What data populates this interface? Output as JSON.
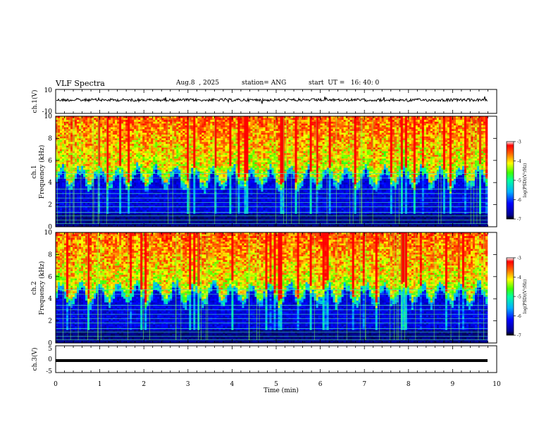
{
  "header": {
    "title": "VLF Spectra",
    "date": "Aug.8  , 2025",
    "station": "station= ANG",
    "start": "start  UT =   16: 40: 0"
  },
  "chart_data": [
    {
      "type": "line",
      "id": "ch1-waveform",
      "ylabel": "ch.1(V)",
      "ylim": [
        -10,
        10
      ],
      "yticks": [
        "10",
        "-10"
      ],
      "xlim": [
        0,
        10
      ],
      "trace": "noisy waveform near 0 V spanning 0 to 9.8 min"
    },
    {
      "type": "heatmap",
      "id": "ch1-spectrogram",
      "ylabel": "ch.1\nFrequency (kHz)",
      "ylim": [
        0,
        10
      ],
      "yticks": [
        "0",
        "2",
        "4",
        "6",
        "8",
        "10"
      ],
      "xlim": [
        0,
        10
      ],
      "colorbar": {
        "label": "log(PSD)(V²/Hz)",
        "range": [
          -7,
          -3
        ],
        "ticks": [
          "-3",
          "-4",
          "-5",
          "-6",
          "-7"
        ]
      }
    },
    {
      "type": "heatmap",
      "id": "ch2-spectrogram",
      "ylabel": "ch.2\nFrequency (kHz)",
      "ylim": [
        0,
        10
      ],
      "yticks": [
        "0",
        "2",
        "4",
        "6",
        "8",
        "10"
      ],
      "xlim": [
        0,
        10
      ],
      "colorbar": {
        "label": "log(PSD)(V²/Hz)",
        "range": [
          -7,
          -3
        ],
        "ticks": [
          "-3",
          "-4",
          "-5",
          "-6",
          "-7"
        ]
      }
    },
    {
      "type": "line",
      "id": "ch3-waveform",
      "ylabel": "ch.3(V)",
      "ylim": [
        -5,
        5
      ],
      "yticks": [
        "5",
        "0",
        "-5"
      ],
      "xlim": [
        0,
        10
      ],
      "trace": "flat line at about -1 V spanning 0 to 9.8 min"
    }
  ],
  "xaxis": {
    "label": "Time  (min)",
    "ticks": [
      "0",
      "1",
      "2",
      "3",
      "4",
      "5",
      "6",
      "7",
      "8",
      "9",
      "10"
    ]
  }
}
